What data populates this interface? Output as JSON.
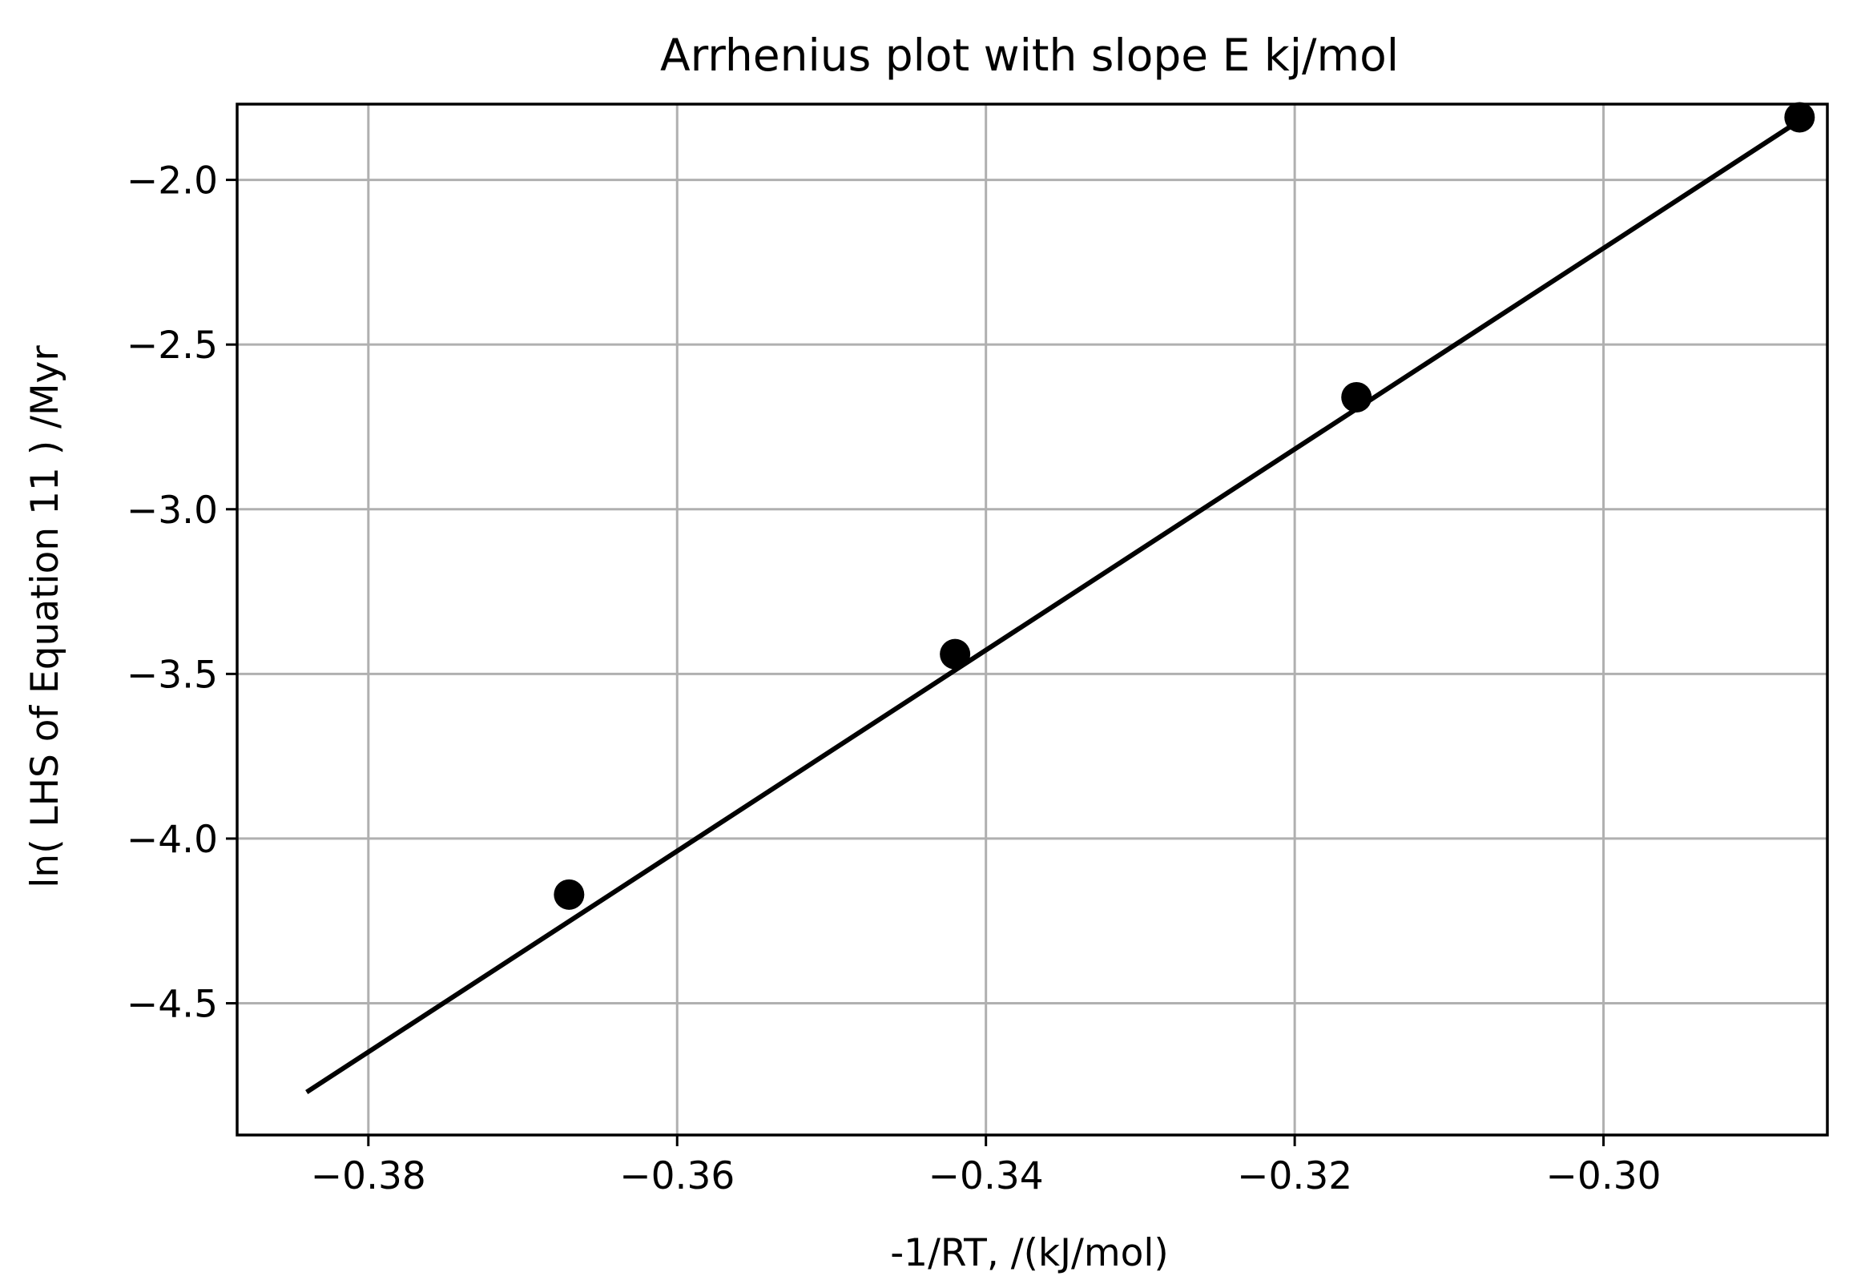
{
  "chart_data": {
    "type": "scatter",
    "title": "Arrhenius plot with slope E kj/mol",
    "xlabel": "-1/RT,   /(kJ/mol)",
    "ylabel": "ln( LHS of Equation 11 )  /Myr",
    "xlim": [
      -0.3885,
      -0.2855
    ],
    "ylim": [
      -4.9,
      -1.77
    ],
    "grid": true,
    "x_ticks": [
      -0.38,
      -0.36,
      -0.34,
      -0.32,
      -0.3
    ],
    "x_tick_labels": [
      "−0.38",
      "−0.36",
      "−0.34",
      "−0.32",
      "−0.30"
    ],
    "y_ticks": [
      -2.0,
      -2.5,
      -3.0,
      -3.5,
      -4.0,
      -4.5
    ],
    "y_tick_labels": [
      "−2.0",
      "−2.5",
      "−3.0",
      "−3.5",
      "−4.0",
      "−4.5"
    ],
    "points": [
      {
        "x": -0.367,
        "y": -4.17
      },
      {
        "x": -0.342,
        "y": -3.44
      },
      {
        "x": -0.316,
        "y": -2.66
      },
      {
        "x": -0.2873,
        "y": -1.81
      }
    ],
    "fit_line": {
      "x": [
        -0.384,
        -0.2873
      ],
      "y": [
        -4.77,
        -1.82
      ]
    },
    "colors": {
      "points": "#000000",
      "line": "#000000",
      "grid": "#b0b0b0",
      "axes": "#000000"
    }
  }
}
